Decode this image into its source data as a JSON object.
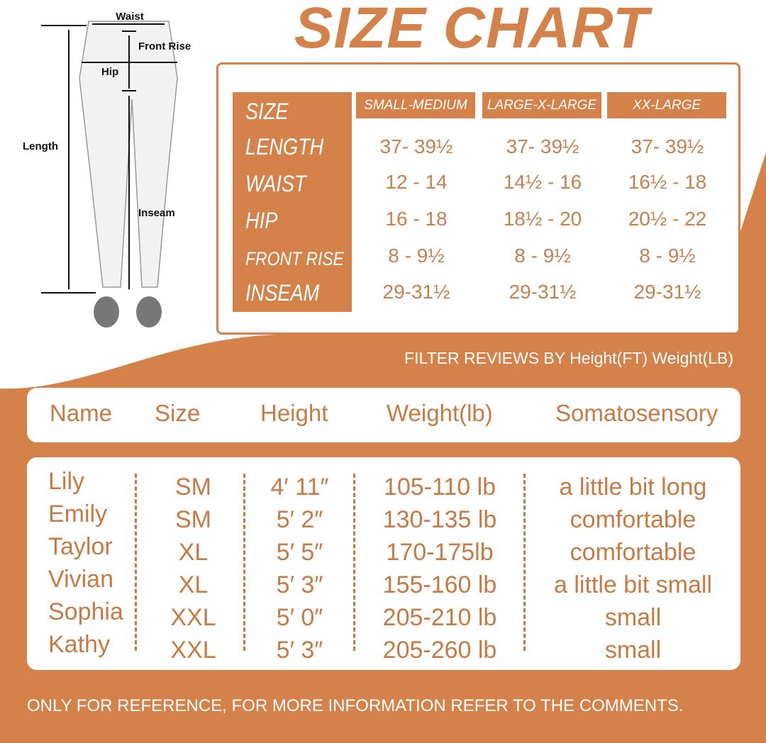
{
  "title": "SIZE CHART",
  "diagram_labels": {
    "waist": "Waist",
    "front_rise": "Front Rise",
    "hip": "Hip",
    "length": "Length",
    "inseam": "Inseam"
  },
  "size_table": {
    "row_labels": [
      "SIZE",
      "LENGTH",
      "WAIST",
      "HIP",
      "FRONT RISE",
      "INSEAM"
    ],
    "columns": [
      {
        "header": "SMALL-MEDIUM",
        "values": [
          "37- 39½",
          "12 - 14",
          "16 - 18",
          "8 - 9½",
          "29-31½"
        ]
      },
      {
        "header": "LARGE-X-LARGE",
        "values": [
          "37- 39½",
          "14½ - 16",
          "18½ - 20",
          "8 - 9½",
          "29-31½"
        ]
      },
      {
        "header": "XX-LARGE",
        "values": [
          "37- 39½",
          "16½ - 18",
          "20½ - 22",
          "8 - 9½",
          "29-31½"
        ]
      }
    ]
  },
  "filter_text": "FILTER REVIEWS BY Height(FT) Weight(LB)",
  "reviews": {
    "headers": [
      "Name",
      "Size",
      "Height",
      "Weight(lb)",
      "Somatosensory"
    ],
    "rows": [
      [
        "Lily",
        "SM",
        "4′  11″",
        "105-110 lb",
        "a little bit long"
      ],
      [
        "Emily",
        "SM",
        "5′  2″",
        "130-135 lb",
        "comfortable"
      ],
      [
        "Taylor",
        "XL",
        "5′  5″",
        "170-175lb",
        "comfortable"
      ],
      [
        "Vivian",
        "XL",
        "5′  3″",
        "155-160 lb",
        "a little bit small"
      ],
      [
        "Sophia",
        "XXL",
        "5′  0″",
        "205-210 lb",
        "small"
      ],
      [
        "Kathy",
        "XXL",
        "5′  3″",
        "205-260 lb",
        "small"
      ]
    ]
  },
  "footer": "ONLY FOR REFERENCE, FOR MORE INFORMATION REFER TO THE COMMENTS.",
  "colors": {
    "accent": "#d4824a",
    "text": "#c87a44"
  }
}
